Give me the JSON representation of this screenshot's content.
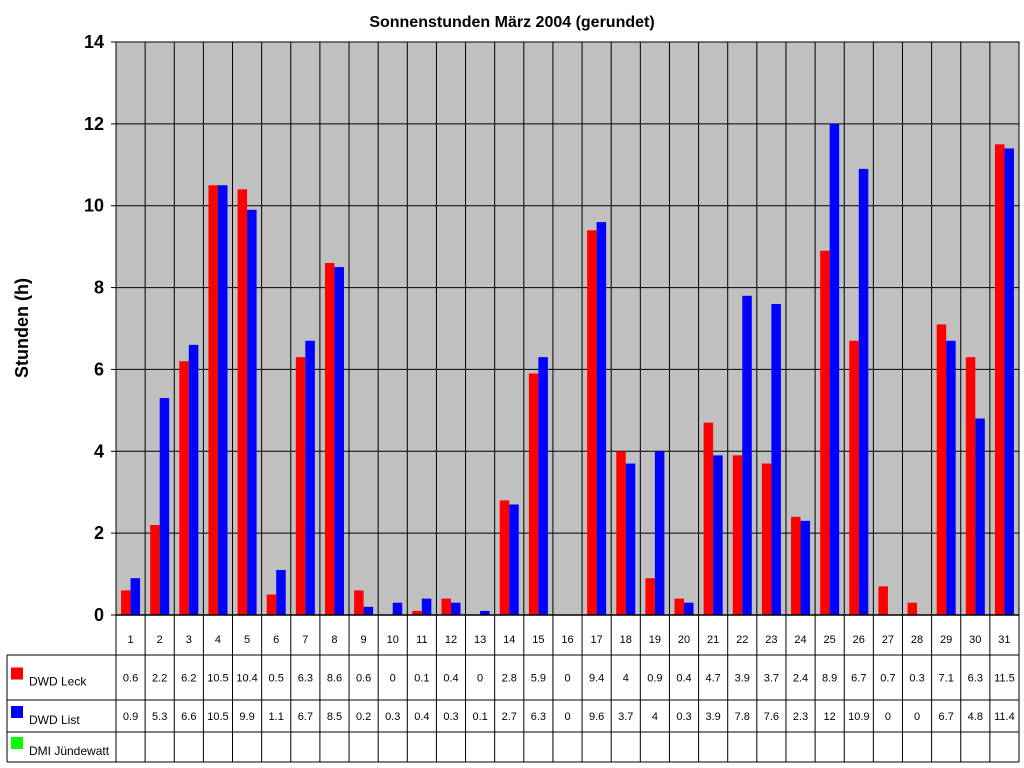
{
  "chart_data": {
    "type": "bar",
    "title": "Sonnenstunden März 2004 (gerundet)",
    "xlabel": "",
    "ylabel": "Stunden (h)",
    "ylim": [
      0,
      14
    ],
    "yticks": [
      0,
      2,
      4,
      6,
      8,
      10,
      12,
      14
    ],
    "grid": true,
    "legend": "data-table-left",
    "categories": [
      "1",
      "2",
      "3",
      "4",
      "5",
      "6",
      "7",
      "8",
      "9",
      "10",
      "11",
      "12",
      "13",
      "14",
      "15",
      "16",
      "17",
      "18",
      "19",
      "20",
      "21",
      "22",
      "23",
      "24",
      "25",
      "26",
      "27",
      "28",
      "29",
      "30",
      "31"
    ],
    "series": [
      {
        "name": "DWD Leck",
        "color": "#ff0000",
        "values": [
          0.6,
          2.2,
          6.2,
          10.5,
          10.4,
          0.5,
          6.3,
          8.6,
          0.6,
          0,
          0.1,
          0.4,
          0,
          2.8,
          5.9,
          0,
          9.4,
          4,
          0.9,
          0.4,
          4.7,
          3.9,
          3.7,
          2.4,
          8.9,
          6.7,
          0.7,
          0.3,
          7.1,
          6.3,
          11.5
        ]
      },
      {
        "name": "DWD List",
        "color": "#0000ff",
        "values": [
          0.9,
          5.3,
          6.6,
          10.5,
          9.9,
          1.1,
          6.7,
          8.5,
          0.2,
          0.3,
          0.4,
          0.3,
          0.1,
          2.7,
          6.3,
          0,
          9.6,
          3.7,
          4,
          0.3,
          3.9,
          7.8,
          7.6,
          2.3,
          12,
          10.9,
          0,
          0,
          6.7,
          4.8,
          11.4
        ]
      },
      {
        "name": "DMI Jündewatt",
        "color": "#00ff00",
        "values": [
          null,
          null,
          null,
          null,
          null,
          null,
          null,
          null,
          null,
          null,
          null,
          null,
          null,
          null,
          null,
          null,
          null,
          null,
          null,
          null,
          null,
          null,
          null,
          null,
          null,
          null,
          null,
          null,
          null,
          null,
          null
        ]
      }
    ],
    "colors": {
      "plot_background": "#c0c0c0",
      "gridline": "#000000"
    }
  }
}
